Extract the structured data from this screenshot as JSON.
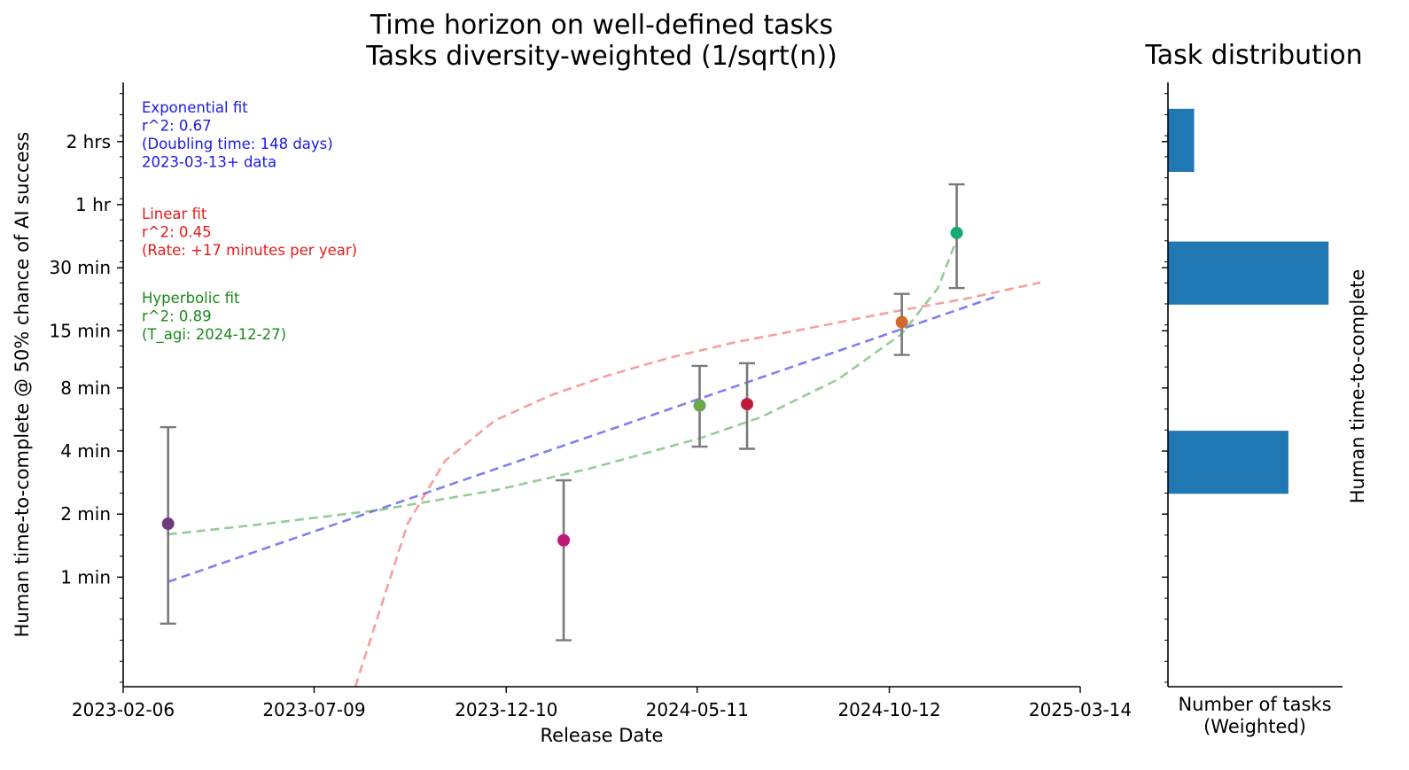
{
  "chart_data": [
    {
      "type": "scatter",
      "title": "Time horizon on well-defined tasks\nTasks diversity-weighted (1/sqrt(n))",
      "xlabel": "Release Date",
      "ylabel": "Human time-to-complete @ 50% chance of AI success",
      "x_scale": "date",
      "xlim": [
        "2023-02-06",
        "2025-03-14"
      ],
      "x_ticks": [
        "2023-02-06",
        "2023-07-09",
        "2023-12-10",
        "2024-05-11",
        "2024-10-12",
        "2025-03-14"
      ],
      "y_scale": "log2",
      "y_unit": "minutes",
      "ylim": [
        0.3,
        230
      ],
      "y_ticks": [
        {
          "value": 1,
          "label": "1 min"
        },
        {
          "value": 2,
          "label": "2 min"
        },
        {
          "value": 4,
          "label": "4 min"
        },
        {
          "value": 8,
          "label": "8 min"
        },
        {
          "value": 15,
          "label": "15 min"
        },
        {
          "value": 30,
          "label": "30 min"
        },
        {
          "value": 60,
          "label": "1 hr"
        },
        {
          "value": 120,
          "label": "2 hrs"
        }
      ],
      "grid": false,
      "points": [
        {
          "date": "2023-03-14",
          "y": 1.8,
          "ci": [
            0.6,
            5.2
          ],
          "color": "#6d3b7a"
        },
        {
          "date": "2024-01-25",
          "y": 1.5,
          "ci": [
            0.5,
            2.9
          ],
          "color": "#c2187a"
        },
        {
          "date": "2024-05-13",
          "y": 6.6,
          "ci": [
            4.2,
            10.2
          ],
          "color": "#69a84f"
        },
        {
          "date": "2024-06-20",
          "y": 6.7,
          "ci": [
            4.1,
            10.5
          ],
          "color": "#c0193e"
        },
        {
          "date": "2024-10-22",
          "y": 16.5,
          "ci": [
            11.5,
            22.5
          ],
          "color": "#d2692f"
        },
        {
          "date": "2024-12-05",
          "y": 44.0,
          "ci": [
            24.0,
            75.0
          ],
          "color": "#16a970"
        }
      ],
      "series": [
        {
          "name": "Exponential fit",
          "color": "#0000e6",
          "dashed": true,
          "x": [
            "2023-03-14",
            "2025-01-07"
          ],
          "y": [
            0.95,
            22.0
          ]
        },
        {
          "name": "Linear fit",
          "color": "#f04040",
          "dashed": true,
          "x": [
            "2023-08-11",
            "2023-09-22",
            "2023-10-22",
            "2023-12-01",
            "2024-01-15",
            "2024-03-01",
            "2024-04-20",
            "2024-06-10",
            "2024-08-10",
            "2024-10-15",
            "2024-12-15",
            "2025-02-10"
          ],
          "y": [
            0.3,
            1.8,
            3.6,
            5.6,
            7.4,
            9.2,
            11.2,
            13.2,
            15.5,
            18.5,
            21.5,
            25.5
          ]
        },
        {
          "name": "Hyperbolic fit",
          "color": "#2e9a2e",
          "dashed": true,
          "x": [
            "2023-03-14",
            "2023-06-01",
            "2023-09-01",
            "2023-12-01",
            "2024-02-15",
            "2024-05-13",
            "2024-07-01",
            "2024-09-01",
            "2024-10-22",
            "2024-11-20",
            "2024-12-05"
          ],
          "y": [
            1.6,
            1.8,
            2.1,
            2.6,
            3.3,
            4.6,
            5.8,
            8.8,
            14.5,
            24.0,
            41.0
          ]
        }
      ],
      "annotations": [
        {
          "color": "#1a1ae6",
          "lines": [
            "Exponential fit",
            "r^2: 0.67",
            "(Doubling time: 148 days)",
            "2023-03-13+ data"
          ]
        },
        {
          "color": "#e61a1a",
          "lines": [
            "Linear fit",
            "r^2: 0.45",
            "(Rate: +17 minutes per year)"
          ]
        },
        {
          "color": "#1a8a1a",
          "lines": [
            "Hyperbolic fit",
            "r^2: 0.89",
            "(T_agi: 2024-12-27)"
          ]
        }
      ]
    },
    {
      "type": "bar",
      "orientation": "horizontal",
      "title": "Task distribution",
      "xlabel": "Number of tasks\n(Weighted)",
      "ylabel": "Human time-to-complete",
      "shares_y_axis_with": 0,
      "color": "#1f77b4",
      "bars": [
        {
          "y_from": 86,
          "y_to": 172,
          "value": 0.15
        },
        {
          "y_from": 20,
          "y_to": 40,
          "value": 0.92
        },
        {
          "y_from": 2.5,
          "y_to": 5,
          "value": 0.69
        }
      ],
      "xlim": [
        0,
        1
      ]
    }
  ]
}
